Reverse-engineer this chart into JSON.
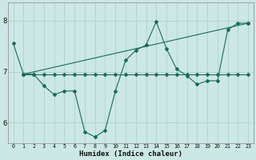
{
  "xlabel": "Humidex (Indice chaleur)",
  "bg_color": "#cce8e4",
  "grid_color": "#aaccca",
  "line_color": "#1a6b5e",
  "xlim": [
    -0.5,
    23.5
  ],
  "ylim": [
    5.6,
    8.35
  ],
  "yticks": [
    6,
    7,
    8
  ],
  "xticks": [
    0,
    1,
    2,
    3,
    4,
    5,
    6,
    7,
    8,
    9,
    10,
    11,
    12,
    13,
    14,
    15,
    16,
    17,
    18,
    19,
    20,
    21,
    22,
    23
  ],
  "series1_x": [
    0,
    1,
    2,
    3,
    4,
    5,
    6,
    7,
    8,
    9,
    10,
    11,
    12,
    13,
    14,
    15,
    16,
    17,
    18,
    19,
    20,
    21,
    22,
    23
  ],
  "series1_y": [
    7.55,
    6.95,
    6.95,
    6.72,
    6.55,
    6.62,
    6.62,
    5.82,
    5.72,
    5.85,
    6.62,
    7.22,
    7.42,
    7.52,
    7.98,
    7.45,
    7.05,
    6.92,
    6.75,
    6.82,
    6.82,
    7.82,
    7.95,
    7.95
  ],
  "series2_x": [
    1,
    2,
    3,
    4,
    5,
    6,
    7,
    8,
    9,
    10,
    11,
    12,
    13,
    14,
    15,
    16,
    17,
    18,
    19,
    20,
    21,
    22,
    23
  ],
  "series2_y": [
    6.95,
    6.95,
    6.95,
    6.95,
    6.95,
    6.95,
    6.95,
    6.95,
    6.95,
    6.95,
    6.95,
    6.95,
    6.95,
    6.95,
    6.95,
    6.95,
    6.95,
    6.95,
    6.95,
    6.95,
    6.95,
    6.95,
    6.95
  ],
  "series3_x": [
    1,
    23
  ],
  "series3_y": [
    6.95,
    7.95
  ]
}
